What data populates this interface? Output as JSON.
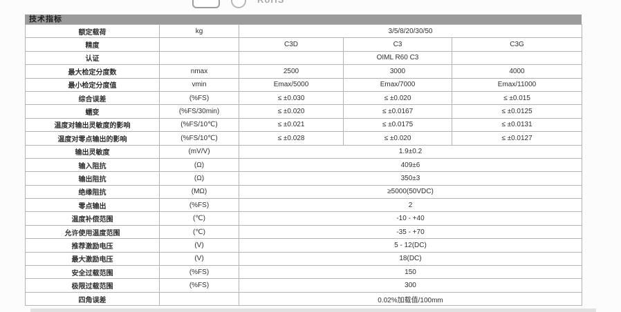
{
  "top_logos": {
    "badge_text": "RoHS"
  },
  "table": {
    "title": "技术指标",
    "value_headers": [
      "C3D",
      "C3",
      "C3G"
    ],
    "rows": [
      {
        "label": "额定载荷",
        "unit": "kg",
        "values": [
          "3/5/8/20/30/50"
        ],
        "span": 3
      },
      {
        "label": "精度",
        "unit": "",
        "values": [
          "C3D",
          "C3",
          "C3G"
        ]
      },
      {
        "label": "认证",
        "unit": "",
        "values": [
          "",
          "OIML R60 C3",
          ""
        ]
      },
      {
        "label": "最大检定分度数",
        "unit": "nmax",
        "values": [
          "2500",
          "3000",
          "4000"
        ]
      },
      {
        "label": "最小检定分度值",
        "unit": "vmin",
        "values": [
          "Emax/5000",
          "Emax/7000",
          "Emax/11000"
        ]
      },
      {
        "label": "综合误差",
        "unit": "(%FS)",
        "values": [
          "≤ ±0.030",
          "≤ ±0.020",
          "≤ ±0.015"
        ]
      },
      {
        "label": "蠕变",
        "unit": "(%FS/30min)",
        "values": [
          "≤ ±0.020",
          "≤ ±0.0167",
          "≤ ±0.0125"
        ]
      },
      {
        "label": "温度对输出灵敏度的影响",
        "unit": "(%FS/10℃)",
        "values": [
          "≤ ±0.021",
          "≤ ±0.0175",
          "≤ ±0.0131"
        ]
      },
      {
        "label": "温度对零点输出的影响",
        "unit": "(%FS/10℃)",
        "values": [
          "≤ ±0.028",
          "≤ ±0.020",
          "≤ ±0.0127"
        ]
      },
      {
        "label": "输出灵敏度",
        "unit": "(mV/V)",
        "values": [
          "1.9±0.2"
        ],
        "span": 3
      },
      {
        "label": "输入阻抗",
        "unit": "(Ω)",
        "values": [
          "409±6"
        ],
        "span": 3
      },
      {
        "label": "输出阻抗",
        "unit": "(Ω)",
        "values": [
          "350±3"
        ],
        "span": 3
      },
      {
        "label": "绝缘阻抗",
        "unit": "(MΩ)",
        "values": [
          "≥5000(50VDC)"
        ],
        "span": 3
      },
      {
        "label": "零点输出",
        "unit": "(%FS)",
        "values": [
          "2"
        ],
        "span": 3
      },
      {
        "label": "温度补偿范围",
        "unit": "(℃)",
        "values": [
          "-10 - +40"
        ],
        "span": 3
      },
      {
        "label": "允许使用温度范围",
        "unit": "(℃)",
        "values": [
          "-35 - +70"
        ],
        "span": 3
      },
      {
        "label": "推荐激励电压",
        "unit": "(V)",
        "values": [
          "5 - 12(DC)"
        ],
        "span": 3
      },
      {
        "label": "最大激励电压",
        "unit": "(V)",
        "values": [
          "18(DC)"
        ],
        "span": 3
      },
      {
        "label": "安全过载范围",
        "unit": "(%FS)",
        "values": [
          "150"
        ],
        "span": 3
      },
      {
        "label": "极限过载范围",
        "unit": "(%FS)",
        "values": [
          "300"
        ],
        "span": 3
      },
      {
        "label": "四角误差",
        "unit": "",
        "values": [
          "0.02%加载值/100mm"
        ],
        "span": 3
      }
    ],
    "colors": {
      "title_bar_bg": "#9b9b9b",
      "border": "#b3b3b3",
      "text": "#2e2e2e"
    }
  }
}
